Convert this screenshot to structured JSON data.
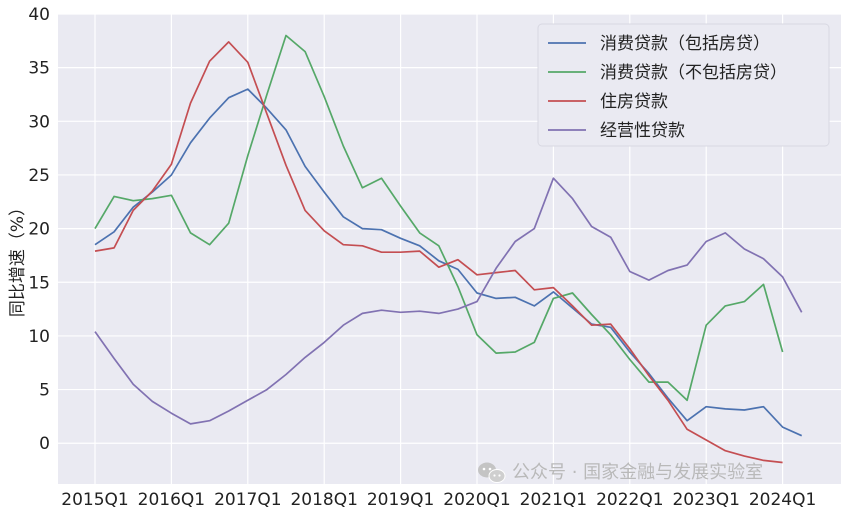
{
  "chart_data": {
    "type": "line",
    "title": "",
    "xlabel": "",
    "ylabel": "同比增速（%）",
    "ylim": [
      -3.8,
      40
    ],
    "yticks": [
      0,
      5,
      10,
      15,
      20,
      25,
      30,
      35,
      40
    ],
    "x_tick_labels": [
      "2015Q1",
      "2016Q1",
      "2017Q1",
      "2018Q1",
      "2019Q1",
      "2020Q1",
      "2021Q1",
      "2022Q1",
      "2023Q1",
      "2024Q1"
    ],
    "grid": true,
    "legend_position": "top-right",
    "series": [
      {
        "name": "消费贷款（包括房贷）",
        "color": "#4c72b0",
        "values": [
          18.5,
          19.7,
          22.0,
          23.4,
          25.0,
          28.0,
          30.3,
          32.2,
          33.0,
          31.2,
          29.2,
          25.8,
          23.4,
          21.1,
          20.0,
          19.9,
          19.1,
          18.4,
          17.0,
          16.2,
          14.0,
          13.5,
          13.6,
          12.8,
          14.1,
          12.6,
          11.1,
          10.8,
          8.5,
          6.5,
          4.2,
          2.1,
          3.4,
          3.2,
          3.1,
          3.4,
          1.5,
          0.7
        ]
      },
      {
        "name": "消费贷款（不包括房贷）",
        "color": "#55a868",
        "values": [
          20.0,
          23.0,
          22.6,
          22.8,
          23.1,
          19.6,
          18.5,
          20.5,
          26.8,
          32.5,
          38.0,
          36.5,
          32.3,
          27.7,
          23.8,
          24.7,
          22.1,
          19.6,
          18.4,
          14.6,
          10.1,
          8.4,
          8.5,
          9.4,
          13.5,
          14.0,
          12.0,
          10.1,
          7.8,
          5.7,
          5.7,
          4.0,
          11.0,
          12.8,
          13.2,
          14.8,
          8.5,
          null
        ]
      },
      {
        "name": "住房贷款",
        "color": "#c44e52",
        "values": [
          17.9,
          18.2,
          21.7,
          23.5,
          26.0,
          31.7,
          35.6,
          37.4,
          35.5,
          30.7,
          25.9,
          21.7,
          19.8,
          18.5,
          18.4,
          17.8,
          17.8,
          17.9,
          16.4,
          17.1,
          15.7,
          15.9,
          16.1,
          14.3,
          14.5,
          12.8,
          11.0,
          11.1,
          8.8,
          6.3,
          4.0,
          1.3,
          0.3,
          -0.7,
          -1.2,
          -1.6,
          -1.8,
          null
        ]
      },
      {
        "name": "经营性贷款",
        "color": "#8172b2",
        "values": [
          10.4,
          7.9,
          5.5,
          3.9,
          2.8,
          1.8,
          2.1,
          3.0,
          4.0,
          5.0,
          6.4,
          8.0,
          9.4,
          11.0,
          12.1,
          12.4,
          12.2,
          12.3,
          12.1,
          12.5,
          13.2,
          16.3,
          18.8,
          20.0,
          24.7,
          22.8,
          20.2,
          19.2,
          16.0,
          15.2,
          16.1,
          16.6,
          18.8,
          19.6,
          18.1,
          17.2,
          15.5,
          12.2
        ]
      }
    ]
  },
  "watermark": {
    "icon": "wechat-icon",
    "text": "公众号 · 国家金融与发展实验室"
  }
}
